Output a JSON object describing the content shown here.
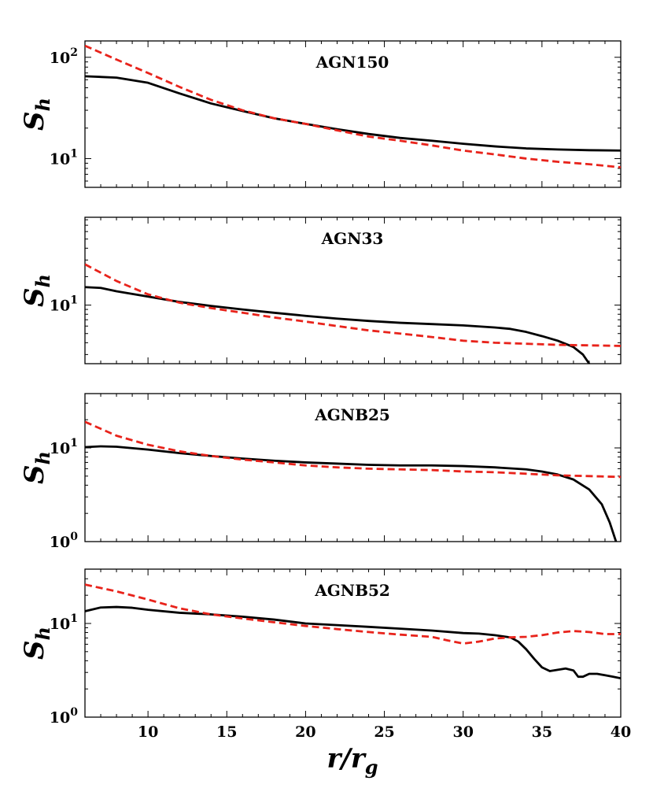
{
  "chart_data": [
    {
      "type": "line",
      "title": "AGN150",
      "ylabel": "S_h",
      "yscale": "log",
      "ylim": [
        5.2,
        145
      ],
      "xlim": [
        6,
        40
      ],
      "yticks": [
        {
          "value": 10,
          "base": "10",
          "exp": "1"
        },
        {
          "value": 100,
          "base": "10",
          "exp": "2"
        }
      ],
      "series": [
        {
          "style": "solid",
          "color": "#000000",
          "x": [
            6,
            8,
            10,
            12,
            14,
            16,
            18,
            20,
            22,
            24,
            26,
            28,
            30,
            32,
            34,
            36,
            38,
            40
          ],
          "y": [
            65,
            63,
            56,
            44,
            35,
            29.5,
            25,
            22,
            19.5,
            17.5,
            16,
            15,
            14,
            13.2,
            12.6,
            12.3,
            12.1,
            12
          ]
        },
        {
          "style": "dashed",
          "color": "#e8231b",
          "x": [
            6,
            8,
            10,
            12,
            14,
            16,
            18,
            20,
            22,
            24,
            26,
            28,
            30,
            32,
            34,
            36,
            38,
            40
          ],
          "y": [
            130,
            95,
            70,
            51,
            38,
            30,
            25,
            22,
            19,
            16.5,
            15,
            13.5,
            12,
            11,
            10,
            9.3,
            8.8,
            8.2
          ]
        }
      ]
    },
    {
      "type": "line",
      "title": "AGN33",
      "ylabel": "S_h",
      "yscale": "log",
      "ylim": [
        2.4,
        85
      ],
      "xlim": [
        6,
        40
      ],
      "yticks": [
        {
          "value": 10,
          "base": "10",
          "exp": "1"
        }
      ],
      "series": [
        {
          "style": "solid",
          "color": "#000000",
          "x": [
            6,
            7,
            8,
            10,
            12,
            14,
            16,
            18,
            20,
            22,
            24,
            26,
            28,
            30,
            32,
            33,
            34,
            35,
            36,
            37,
            37.6,
            38
          ],
          "y": [
            15.5,
            15.2,
            14,
            12.3,
            10.8,
            9.8,
            9,
            8.3,
            7.7,
            7.2,
            6.8,
            6.5,
            6.3,
            6.1,
            5.8,
            5.6,
            5.2,
            4.7,
            4.2,
            3.6,
            3.0,
            2.4
          ]
        },
        {
          "style": "dashed",
          "color": "#e8231b",
          "x": [
            6,
            8,
            10,
            12,
            14,
            16,
            18,
            20,
            22,
            24,
            26,
            28,
            30,
            32,
            34,
            36,
            38,
            40
          ],
          "y": [
            27,
            18,
            13,
            10.6,
            9.3,
            8.3,
            7.4,
            6.7,
            6,
            5.4,
            5,
            4.6,
            4.2,
            4,
            3.9,
            3.8,
            3.75,
            3.7
          ]
        }
      ]
    },
    {
      "type": "line",
      "title": "AGNB25",
      "ylabel": "S_h",
      "yscale": "log",
      "ylim": [
        1,
        38
      ],
      "xlim": [
        6,
        40
      ],
      "yticks": [
        {
          "value": 1,
          "base": "10",
          "exp": "0"
        },
        {
          "value": 10,
          "base": "10",
          "exp": "1"
        }
      ],
      "series": [
        {
          "style": "solid",
          "color": "#000000",
          "x": [
            6,
            7,
            8,
            10,
            12,
            14,
            16,
            18,
            20,
            22,
            24,
            26,
            28,
            30,
            32,
            34,
            35,
            36,
            37,
            38,
            38.8,
            39.3,
            39.7
          ],
          "y": [
            10.2,
            10.4,
            10.3,
            9.6,
            8.8,
            8.2,
            7.7,
            7.3,
            7,
            6.8,
            6.6,
            6.5,
            6.5,
            6.4,
            6.2,
            5.9,
            5.6,
            5.2,
            4.6,
            3.6,
            2.5,
            1.6,
            1.0
          ]
        },
        {
          "style": "dashed",
          "color": "#e8231b",
          "x": [
            6,
            8,
            10,
            12,
            14,
            16,
            18,
            20,
            22,
            24,
            26,
            28,
            30,
            32,
            34,
            36,
            38,
            40
          ],
          "y": [
            19,
            13.5,
            10.8,
            9.2,
            8.2,
            7.5,
            7,
            6.5,
            6.2,
            6,
            5.9,
            5.8,
            5.6,
            5.5,
            5.3,
            5.1,
            5,
            4.9
          ]
        }
      ]
    },
    {
      "type": "line",
      "title": "AGNB52",
      "ylabel": "S_h",
      "yscale": "log",
      "ylim": [
        1,
        38
      ],
      "xlim": [
        6,
        40
      ],
      "xlabel": "r/r_g",
      "xticks": [
        10,
        15,
        20,
        25,
        30,
        35,
        40
      ],
      "yticks": [
        {
          "value": 1,
          "base": "10",
          "exp": "0"
        },
        {
          "value": 10,
          "base": "10",
          "exp": "1"
        }
      ],
      "series": [
        {
          "style": "solid",
          "color": "#000000",
          "x": [
            6,
            7,
            8,
            9,
            10,
            12,
            14,
            16,
            18,
            20,
            22,
            24,
            26,
            28,
            30,
            31,
            32,
            33,
            33.5,
            34,
            34.5,
            35,
            35.5,
            36,
            36.5,
            37,
            37.3,
            37.6,
            38,
            38.5,
            39,
            39.5,
            40
          ],
          "y": [
            13.5,
            14.8,
            15,
            14.7,
            14,
            13,
            12.5,
            11.8,
            11,
            10,
            9.6,
            9.2,
            8.8,
            8.4,
            7.9,
            7.8,
            7.5,
            7.1,
            6.4,
            5.3,
            4.2,
            3.4,
            3.1,
            3.2,
            3.3,
            3.15,
            2.7,
            2.7,
            2.9,
            2.9,
            2.8,
            2.7,
            2.6
          ]
        },
        {
          "style": "dashed",
          "color": "#e8231b",
          "x": [
            6,
            8,
            10,
            12,
            14,
            16,
            18,
            20,
            22,
            24,
            26,
            28,
            29,
            30,
            31,
            32,
            33,
            34,
            35,
            36,
            37,
            38,
            39,
            40
          ],
          "y": [
            26,
            22,
            18,
            14.5,
            12.5,
            11.3,
            10.3,
            9.4,
            8.7,
            8.1,
            7.6,
            7.2,
            6.6,
            6.1,
            6.4,
            6.9,
            7.1,
            7.2,
            7.5,
            8,
            8.3,
            8.1,
            7.7,
            7.7
          ]
        }
      ]
    }
  ]
}
